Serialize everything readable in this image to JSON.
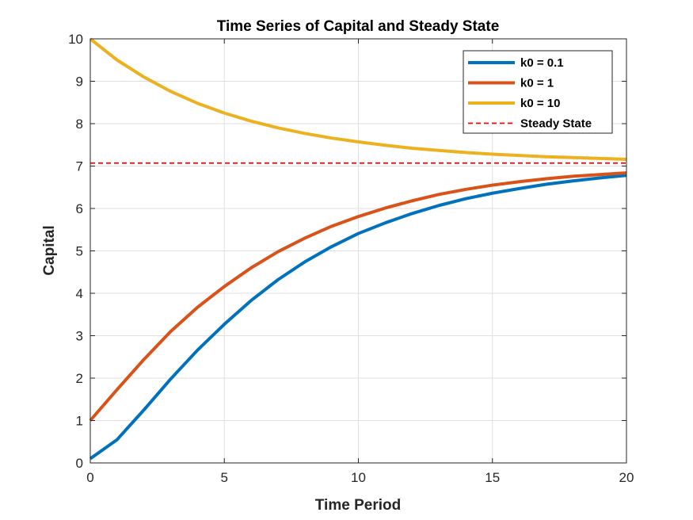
{
  "chart_data": {
    "type": "line",
    "title": "Time Series of Capital and Steady State",
    "xlabel": "Time Period",
    "ylabel": "Capital",
    "xlim": [
      0,
      20
    ],
    "ylim": [
      0,
      10
    ],
    "xticks": [
      0,
      5,
      10,
      15,
      20
    ],
    "yticks": [
      0,
      1,
      2,
      3,
      4,
      5,
      6,
      7,
      8,
      9,
      10
    ],
    "xtick_labels": [
      "0",
      "5",
      "10",
      "15",
      "20"
    ],
    "ytick_labels": [
      "0",
      "1",
      "2",
      "3",
      "4",
      "5",
      "6",
      "7",
      "8",
      "9",
      "10"
    ],
    "grid": true,
    "legend_position": "top-right",
    "x": [
      0,
      1,
      2,
      3,
      4,
      5,
      6,
      7,
      8,
      9,
      10,
      11,
      12,
      13,
      14,
      15,
      16,
      17,
      18,
      19,
      20
    ],
    "series": [
      {
        "name": "k0 = 0.1",
        "color": "#0072BD",
        "style": "solid",
        "values": [
          0.1,
          0.55,
          1.25,
          1.98,
          2.66,
          3.27,
          3.83,
          4.32,
          4.74,
          5.1,
          5.41,
          5.66,
          5.88,
          6.07,
          6.23,
          6.36,
          6.47,
          6.57,
          6.65,
          6.72,
          6.78
        ]
      },
      {
        "name": "k0 = 1",
        "color": "#D95319",
        "style": "solid",
        "values": [
          1.0,
          1.73,
          2.44,
          3.1,
          3.67,
          4.16,
          4.6,
          4.98,
          5.3,
          5.58,
          5.81,
          6.01,
          6.18,
          6.33,
          6.45,
          6.55,
          6.63,
          6.7,
          6.76,
          6.8,
          6.84
        ]
      },
      {
        "name": "k0 = 10",
        "color": "#EDB120",
        "style": "solid",
        "values": [
          10.0,
          9.5,
          9.1,
          8.76,
          8.48,
          8.25,
          8.06,
          7.9,
          7.77,
          7.66,
          7.57,
          7.49,
          7.42,
          7.37,
          7.32,
          7.28,
          7.25,
          7.22,
          7.2,
          7.18,
          7.16
        ]
      },
      {
        "name": "Steady State",
        "color": "#FF0000",
        "style": "dashed",
        "values": [
          7.07,
          7.07,
          7.07,
          7.07,
          7.07,
          7.07,
          7.07,
          7.07,
          7.07,
          7.07,
          7.07,
          7.07,
          7.07,
          7.07,
          7.07,
          7.07,
          7.07,
          7.07,
          7.07,
          7.07,
          7.07
        ]
      }
    ]
  }
}
